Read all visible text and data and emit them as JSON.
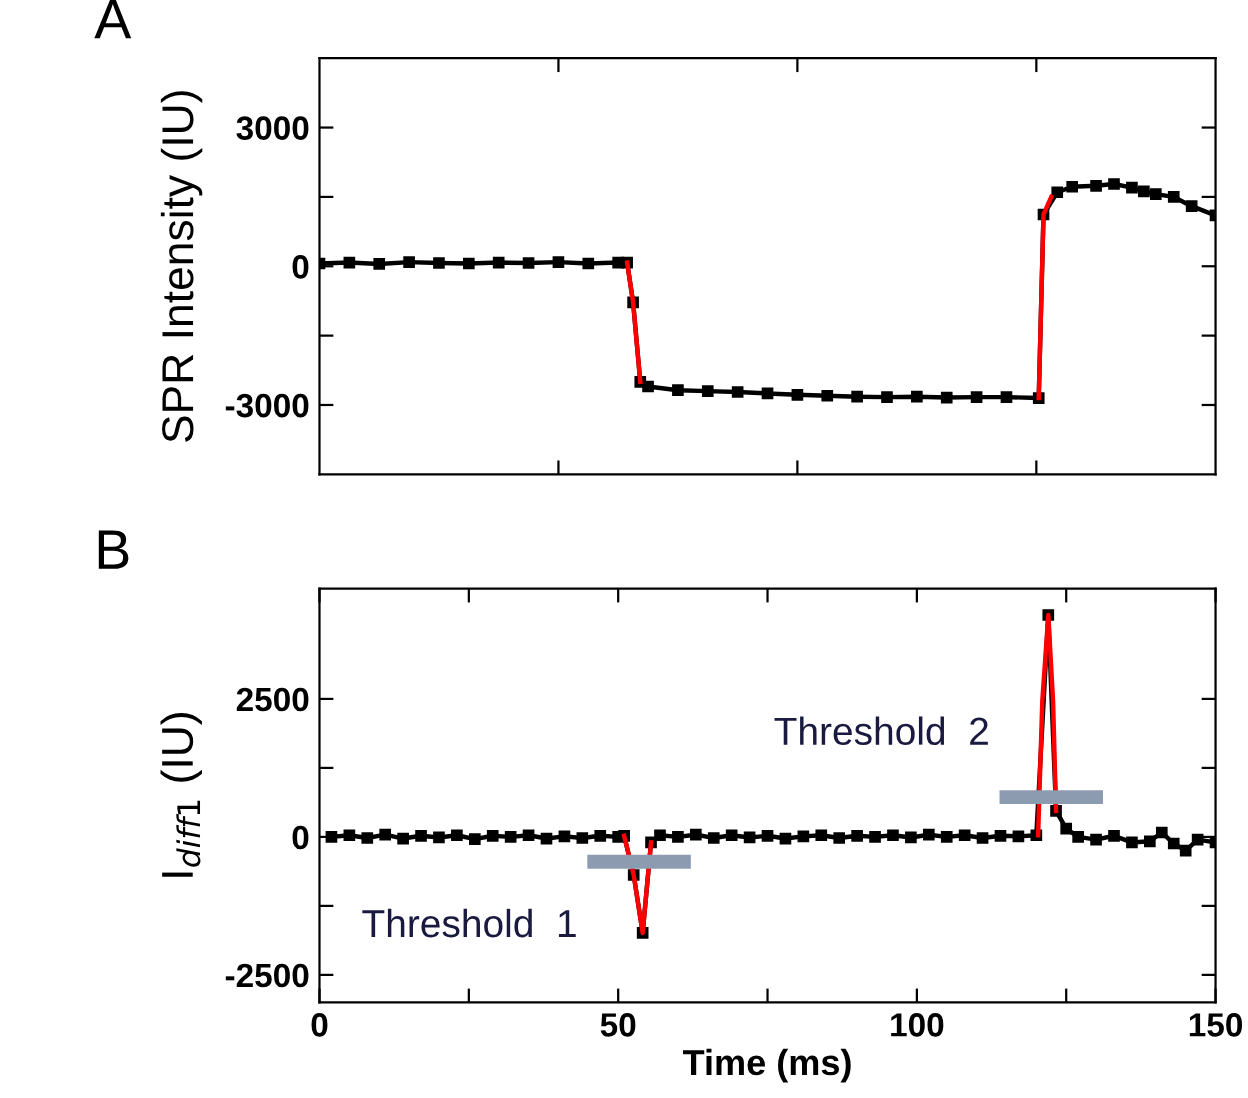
{
  "chart_data": [
    {
      "type": "line",
      "title": "A",
      "ylabel": "SPR Intensity (IU)",
      "xlim": [
        0,
        150
      ],
      "ylim": [
        -4500,
        4500
      ],
      "xticks": [
        {
          "value": 40,
          "label": null
        },
        {
          "value": 80,
          "label": null
        },
        {
          "value": 120,
          "label": null
        }
      ],
      "yticks": [
        -3000,
        {
          "value": -1500,
          "label": null
        },
        0,
        {
          "value": 1500,
          "label": null
        },
        3000
      ],
      "tick_labels": "y",
      "grid": false,
      "legend": false,
      "series": [
        {
          "color": "#000000",
          "marker": "square",
          "x": [
            0,
            5,
            10,
            15,
            20,
            25,
            30,
            35,
            40,
            45,
            50,
            51.5,
            52.5,
            53.7,
            55,
            60,
            65,
            70,
            75,
            80,
            85,
            90,
            95,
            100,
            105,
            110,
            115,
            120.4,
            121.2,
            123.5,
            126,
            130,
            133,
            136,
            138,
            140,
            143,
            146,
            150
          ],
          "values": [
            60,
            80,
            50,
            90,
            70,
            60,
            80,
            70,
            90,
            60,
            80,
            80,
            -780,
            -2500,
            -2600,
            -2680,
            -2700,
            -2720,
            -2750,
            -2780,
            -2800,
            -2820,
            -2830,
            -2820,
            -2840,
            -2830,
            -2830,
            -2850,
            1120,
            1600,
            1720,
            1740,
            1780,
            1700,
            1620,
            1560,
            1500,
            1300,
            1100
          ]
        },
        {
          "color": "#ff0000",
          "marker": "none",
          "x": [
            51.5,
            52.5,
            53.7
          ],
          "values": [
            80,
            -780,
            -2500
          ]
        },
        {
          "color": "#ff0000",
          "marker": "none",
          "x": [
            120.4,
            121.2,
            122.5
          ],
          "values": [
            -2850,
            1120,
            1500
          ]
        }
      ]
    },
    {
      "type": "line",
      "title": "B",
      "ylabel": "I$_{diff1}$ (IU)",
      "xlabel": "Time (ms)",
      "xlim": [
        0,
        150
      ],
      "ylim": [
        -3000,
        4500
      ],
      "xticks": [
        0,
        {
          "value": 25,
          "label": null
        },
        50,
        {
          "value": 75,
          "label": null
        },
        100,
        {
          "value": 125,
          "label": null
        },
        150
      ],
      "yticks": [
        -2500,
        {
          "value": -1250,
          "label": null
        },
        0,
        {
          "value": 1250,
          "label": null
        },
        2500
      ],
      "grid": false,
      "legend": false,
      "series": [
        {
          "color": "#000000",
          "marker": "square",
          "x": [
            2,
            5,
            8,
            11,
            14,
            17,
            20,
            23,
            26,
            29,
            32,
            35,
            38,
            41,
            44,
            47,
            50,
            51,
            52.6,
            54.1,
            55.5,
            57,
            60,
            63,
            66,
            69,
            72,
            75,
            78,
            81,
            84,
            87,
            90,
            93,
            96,
            99,
            102,
            105,
            108,
            111,
            114,
            117,
            120,
            122,
            123.3,
            125,
            127,
            130,
            133,
            136,
            139,
            141,
            143,
            145,
            147,
            150
          ],
          "values": [
            0,
            30,
            -20,
            40,
            -30,
            20,
            -10,
            30,
            -40,
            20,
            0,
            30,
            -30,
            10,
            -20,
            20,
            0,
            20,
            -690,
            -1740,
            -100,
            30,
            0,
            40,
            -20,
            30,
            -10,
            20,
            -30,
            10,
            30,
            -20,
            20,
            0,
            30,
            -10,
            40,
            0,
            30,
            -20,
            20,
            10,
            30,
            4020,
            470,
            150,
            0,
            -50,
            20,
            -100,
            -80,
            80,
            -120,
            -250,
            -50,
            -100
          ]
        },
        {
          "color": "#ff0000",
          "marker": "none",
          "x": [
            51,
            52.6,
            54.1,
            55.5
          ],
          "values": [
            20,
            -690,
            -1740,
            -100
          ]
        },
        {
          "color": "#ff0000",
          "marker": "none",
          "x": [
            120.3,
            121,
            122,
            122.8,
            123.3
          ],
          "values": [
            30,
            2460,
            4020,
            2460,
            470
          ]
        },
        {
          "color": "#8c9bb0",
          "marker": "none",
          "x": [
            46,
            61
          ],
          "values": [
            -450,
            -450
          ]
        },
        {
          "color": "#8c9bb0",
          "marker": "none",
          "x": [
            115,
            130
          ],
          "values": [
            720,
            720
          ]
        }
      ],
      "annotations": [
        {
          "text": "Threshold  1",
          "x": 46,
          "y": -450
        },
        {
          "text": "Threshold  2",
          "x": 115,
          "y": 720
        }
      ]
    }
  ]
}
